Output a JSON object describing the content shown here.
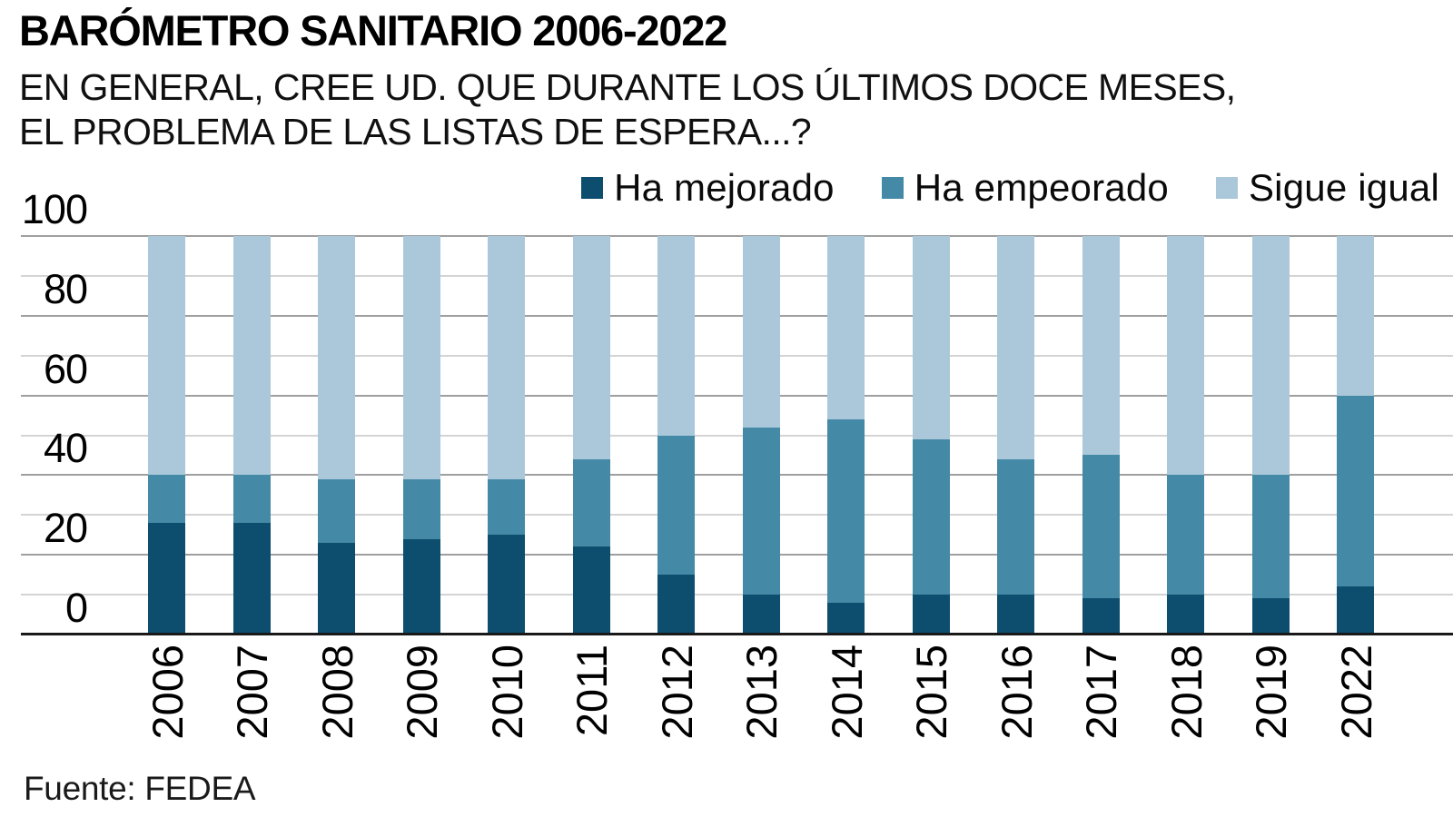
{
  "header": {
    "title": "BARÓMETRO SANITARIO 2006-2022",
    "subtitle_line1": "EN GENERAL, CREE UD. QUE DURANTE LOS ÚLTIMOS DOCE MESES,",
    "subtitle_line2": "EL PROBLEMA DE LAS LISTAS DE ESPERA...?"
  },
  "source": "Fuente: FEDEA",
  "colors": {
    "mejorado": "#0d4d6e",
    "empeorado": "#4489a6",
    "sigue_igual": "#aac8da",
    "grid_minor": "#d4d4d4",
    "grid_major": "#9f9f9f",
    "axis": "#191919",
    "background": "#ffffff"
  },
  "chart_data": {
    "type": "bar",
    "stacked": true,
    "title": "BARÓMETRO SANITARIO 2006-2022",
    "subtitle": "EN GENERAL, CREE UD. QUE DURANTE LOS ÚLTIMOS DOCE MESES, EL PROBLEMA DE LAS LISTAS DE ESPERA...?",
    "categories": [
      "2006",
      "2007",
      "2008",
      "2009",
      "2010",
      "2011",
      "2012",
      "2013",
      "2014",
      "2015",
      "2016",
      "2017",
      "2018",
      "2019",
      "2022"
    ],
    "series": [
      {
        "name": "Ha mejorado",
        "color": "#0d4d6e",
        "values": [
          28,
          28,
          23,
          24,
          25,
          22,
          15,
          10,
          8,
          10,
          10,
          9,
          10,
          9,
          12
        ]
      },
      {
        "name": "Ha empeorado",
        "color": "#4489a6",
        "values": [
          12,
          12,
          16,
          15,
          14,
          22,
          35,
          42,
          46,
          39,
          34,
          36,
          30,
          31,
          48
        ]
      },
      {
        "name": "Sigue igual",
        "color": "#aac8da",
        "values": [
          60,
          60,
          61,
          61,
          61,
          56,
          50,
          48,
          46,
          51,
          56,
          55,
          60,
          60,
          40
        ]
      }
    ],
    "xlabel": "",
    "ylabel": "",
    "ylim": [
      0,
      100
    ],
    "yticks": [
      0,
      20,
      40,
      60,
      80,
      100
    ],
    "grid_interval": 10,
    "grid": true,
    "legend_position": "top-right",
    "units": "%",
    "source": "Fuente: FEDEA"
  }
}
